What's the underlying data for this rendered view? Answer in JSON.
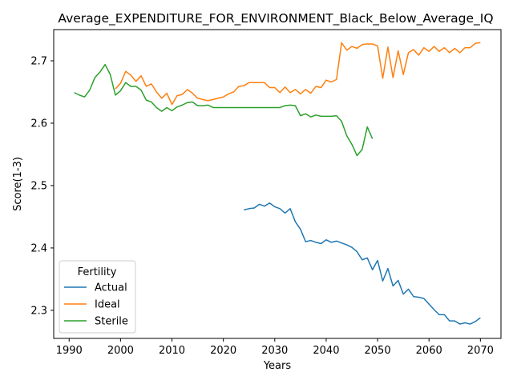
{
  "chart_data": {
    "type": "line",
    "title": "Average_EXPENDITURE_FOR_ENVIRONMENT_Black_Below_Average_IQ",
    "xlabel": "Years",
    "ylabel": "Score(1-3)",
    "xlim": [
      1987,
      2074
    ],
    "ylim": [
      2.255,
      2.75
    ],
    "xticks": [
      1990,
      2000,
      2010,
      2020,
      2030,
      2040,
      2050,
      2060,
      2070
    ],
    "yticks": [
      2.3,
      2.4,
      2.5,
      2.6,
      2.7
    ],
    "grid": false,
    "legend": {
      "title": "Fertility",
      "position": "lower-left"
    },
    "series": [
      {
        "name": "Actual",
        "color": "#1f77b4",
        "x": [
          2024,
          2025,
          2026,
          2027,
          2028,
          2029,
          2030,
          2031,
          2032,
          2033,
          2034,
          2035,
          2036,
          2037,
          2038,
          2039,
          2040,
          2041,
          2042,
          2043,
          2044,
          2045,
          2046,
          2047,
          2048,
          2049,
          2050,
          2051,
          2052,
          2053,
          2054,
          2055,
          2056,
          2057,
          2058,
          2059,
          2060,
          2061,
          2062,
          2063,
          2064,
          2065,
          2066,
          2067,
          2068,
          2069,
          2070
        ],
        "y": [
          2.461,
          2.463,
          2.464,
          2.47,
          2.467,
          2.472,
          2.466,
          2.463,
          2.456,
          2.463,
          2.442,
          2.43,
          2.41,
          2.412,
          2.409,
          2.407,
          2.413,
          2.409,
          2.411,
          2.408,
          2.405,
          2.401,
          2.394,
          2.381,
          2.384,
          2.365,
          2.38,
          2.347,
          2.367,
          2.339,
          2.348,
          2.326,
          2.334,
          2.322,
          2.321,
          2.319,
          2.31,
          2.301,
          2.293,
          2.293,
          2.283,
          2.283,
          2.278,
          2.28,
          2.278,
          2.282,
          2.288
        ]
      },
      {
        "name": "Ideal",
        "color": "#ff7f0e",
        "x": [
          1999,
          2000,
          2001,
          2002,
          2003,
          2004,
          2005,
          2006,
          2007,
          2008,
          2009,
          2010,
          2011,
          2012,
          2013,
          2014,
          2015,
          2016,
          2017,
          2018,
          2019,
          2020,
          2021,
          2022,
          2023,
          2024,
          2025,
          2026,
          2027,
          2028,
          2029,
          2030,
          2031,
          2032,
          2033,
          2034,
          2035,
          2036,
          2037,
          2038,
          2039,
          2040,
          2041,
          2042,
          2043,
          2044,
          2045,
          2046,
          2047,
          2048,
          2049,
          2050,
          2051,
          2052,
          2053,
          2054,
          2055,
          2056,
          2057,
          2058,
          2059,
          2060,
          2061,
          2062,
          2063,
          2064,
          2065,
          2066,
          2067,
          2068,
          2069,
          2070
        ],
        "y": [
          2.655,
          2.664,
          2.683,
          2.677,
          2.667,
          2.676,
          2.659,
          2.663,
          2.65,
          2.64,
          2.648,
          2.63,
          2.644,
          2.646,
          2.654,
          2.648,
          2.64,
          2.638,
          2.636,
          2.638,
          2.64,
          2.642,
          2.647,
          2.65,
          2.659,
          2.66,
          2.665,
          2.665,
          2.665,
          2.665,
          2.657,
          2.657,
          2.649,
          2.658,
          2.649,
          2.654,
          2.647,
          2.654,
          2.648,
          2.659,
          2.657,
          2.669,
          2.666,
          2.67,
          2.729,
          2.717,
          2.723,
          2.72,
          2.726,
          2.727,
          2.727,
          2.724,
          2.672,
          2.722,
          2.673,
          2.716,
          2.678,
          2.713,
          2.718,
          2.709,
          2.721,
          2.715,
          2.723,
          2.715,
          2.721,
          2.713,
          2.72,
          2.713,
          2.721,
          2.721,
          2.728,
          2.729
        ]
      },
      {
        "name": "Sterile",
        "color": "#2ca02c",
        "x": [
          1991,
          1992,
          1993,
          1994,
          1995,
          1996,
          1997,
          1998,
          1999,
          2000,
          2001,
          2002,
          2003,
          2004,
          2005,
          2006,
          2007,
          2008,
          2009,
          2010,
          2011,
          2012,
          2013,
          2014,
          2015,
          2016,
          2017,
          2018,
          2019,
          2020,
          2021,
          2022,
          2023,
          2024,
          2025,
          2026,
          2027,
          2028,
          2029,
          2030,
          2031,
          2032,
          2033,
          2034,
          2035,
          2036,
          2037,
          2038,
          2039,
          2040,
          2041,
          2042,
          2043,
          2044,
          2045,
          2046,
          2047,
          2048,
          2049
        ],
        "y": [
          2.649,
          2.645,
          2.642,
          2.653,
          2.673,
          2.682,
          2.694,
          2.678,
          2.645,
          2.652,
          2.665,
          2.659,
          2.659,
          2.653,
          2.637,
          2.634,
          2.625,
          2.619,
          2.625,
          2.62,
          2.626,
          2.629,
          2.633,
          2.634,
          2.628,
          2.628,
          2.629,
          2.625,
          2.625,
          2.625,
          2.625,
          2.625,
          2.625,
          2.625,
          2.625,
          2.625,
          2.625,
          2.625,
          2.625,
          2.625,
          2.625,
          2.628,
          2.629,
          2.628,
          2.612,
          2.615,
          2.61,
          2.613,
          2.611,
          2.611,
          2.611,
          2.612,
          2.603,
          2.58,
          2.566,
          2.548,
          2.558,
          2.594,
          2.575
        ]
      }
    ]
  }
}
